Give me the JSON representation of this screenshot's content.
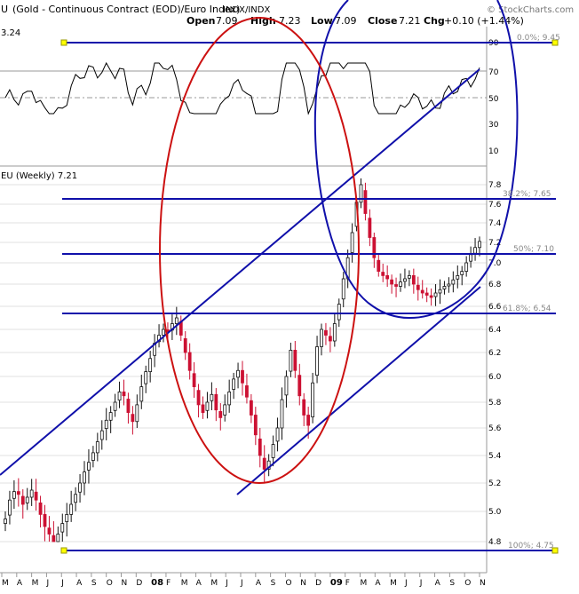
{
  "header": {
    "title_symbol": "U",
    "title_desc": "(Gold - Continuous Contract (EOD)/Euro Index)",
    "title_exch": "INDX/INDX",
    "watermark": "© StockCharts.com",
    "open_label": "Open",
    "open_value": "7.09",
    "high_label": "High",
    "high_value": "7.23",
    "low_label": "Low",
    "low_value": "7.09",
    "close_label": "Close",
    "close_value": "7.21",
    "chg_label": "Chg",
    "chg_value": "+0.10 (+1.44%)"
  },
  "indicator_panel": {
    "value_label": "3.24",
    "ticks": [
      "90",
      "70",
      "50",
      "30",
      "10"
    ]
  },
  "price_panel": {
    "legend": "EU (Weekly) 7.21",
    "ticks": [
      "7.8",
      "7.6",
      "7.4",
      "7.2",
      "7.0",
      "6.8",
      "6.6",
      "6.4",
      "6.2",
      "6.0",
      "5.8",
      "5.6",
      "5.4",
      "5.2",
      "5.0",
      "4.8"
    ],
    "fib_labels": {
      "top": "0.0%; 9.45",
      "f382": "38.2%; 7.65",
      "f50": "50%; 7.10",
      "f618": "61.8%; 6.54",
      "bottom": "100%; 4.75"
    }
  },
  "x_axis": {
    "months": [
      "M",
      "A",
      "M",
      "J",
      "J",
      "A",
      "S",
      "O",
      "N",
      "D",
      "08",
      "F",
      "M",
      "A",
      "M",
      "J",
      "J",
      "A",
      "S",
      "O",
      "N",
      "D",
      "09",
      "F",
      "M",
      "A",
      "M",
      "J",
      "J",
      "A",
      "S",
      "O",
      "N"
    ]
  },
  "colors": {
    "up": "#111111",
    "down": "#cc1133",
    "annotation_blue": "#1010aa",
    "annotation_red": "#cc1111",
    "fill_green": "#4a7a4a",
    "grid": "#e2e2e2",
    "highlight": "#ffff00"
  },
  "chart_data": {
    "type": "candlestick",
    "frequency": "weekly",
    "price_axis": [
      4.8,
      7.8
    ],
    "rsi_axis": [
      0,
      100
    ],
    "fib_levels": [
      {
        "label": "0.0%",
        "value": 9.45
      },
      {
        "label": "38.2%",
        "value": 7.65
      },
      {
        "label": "50%",
        "value": 7.1
      },
      {
        "label": "61.8%",
        "value": 6.54
      },
      {
        "label": "100%",
        "value": 4.75
      }
    ],
    "closes": [
      4.95,
      5.08,
      5.14,
      5.12,
      5.05,
      5.1,
      5.15,
      5.08,
      4.98,
      4.9,
      4.85,
      4.8,
      4.85,
      4.92,
      4.98,
      5.05,
      5.12,
      5.2,
      5.28,
      5.35,
      5.42,
      5.5,
      5.58,
      5.66,
      5.72,
      5.8,
      5.88,
      5.85,
      5.72,
      5.65,
      5.78,
      5.92,
      6.04,
      6.15,
      6.28,
      6.35,
      6.4,
      6.38,
      6.45,
      6.5,
      6.35,
      6.2,
      6.05,
      5.92,
      5.78,
      5.72,
      5.8,
      5.86,
      5.74,
      5.68,
      5.78,
      5.88,
      5.98,
      6.05,
      5.95,
      5.84,
      5.7,
      5.55,
      5.4,
      5.3,
      5.36,
      5.48,
      5.6,
      5.82,
      6.0,
      6.22,
      6.05,
      5.85,
      5.7,
      5.62,
      5.95,
      6.25,
      6.4,
      6.35,
      6.3,
      6.45,
      6.62,
      6.85,
      7.05,
      7.3,
      7.62,
      7.8,
      7.5,
      7.25,
      7.05,
      6.92,
      6.88,
      6.85,
      6.8,
      6.78,
      6.82,
      6.85,
      6.88,
      6.8,
      6.75,
      6.72,
      6.7,
      6.68,
      6.72,
      6.75,
      6.78,
      6.8,
      6.84,
      6.88,
      6.92,
      7.0,
      7.08,
      7.15,
      7.21
    ]
  }
}
